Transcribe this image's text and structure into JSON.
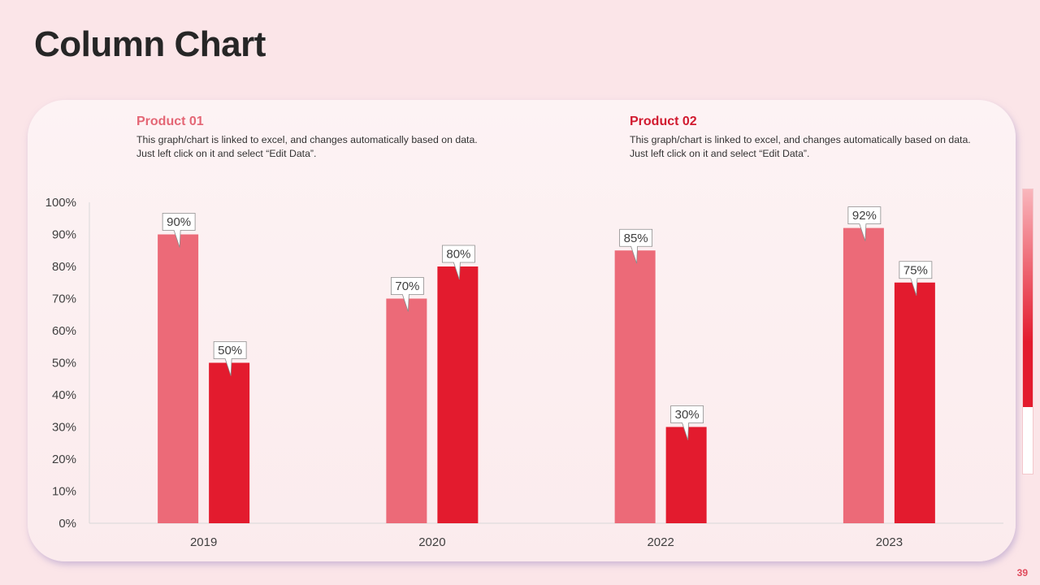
{
  "slide": {
    "title": "Column Chart",
    "page_number": "39"
  },
  "colors": {
    "product_01": "#ec6a78",
    "product_02": "#e31b2e",
    "background": "#fbe5e8",
    "accent": "#e04a5b"
  },
  "legend": [
    {
      "title": "Product 01",
      "description": "This graph/chart is linked to excel, and changes automatically based on data. Just left click on it and select “Edit Data”."
    },
    {
      "title": "Product 02",
      "description": "This graph/chart is linked to excel, and changes automatically based on data. Just left click on it and select “Edit Data”."
    }
  ],
  "chart_data": {
    "type": "bar",
    "title": "Column Chart",
    "xlabel": "",
    "ylabel": "",
    "categories": [
      "2019",
      "2020",
      "2022",
      "2023"
    ],
    "series": [
      {
        "name": "Product 01",
        "values": [
          90,
          70,
          85,
          92
        ]
      },
      {
        "name": "Product 02",
        "values": [
          50,
          80,
          30,
          75
        ]
      }
    ],
    "value_format": "percent",
    "ylim": [
      0,
      100
    ],
    "yticks": [
      0,
      10,
      20,
      30,
      40,
      50,
      60,
      70,
      80,
      90,
      100
    ],
    "ytick_labels": [
      "0%",
      "10%",
      "20%",
      "30%",
      "40%",
      "50%",
      "60%",
      "70%",
      "80%",
      "90%",
      "100%"
    ],
    "data_labels": [
      [
        "90%",
        "70%",
        "85%",
        "92%"
      ],
      [
        "50%",
        "80%",
        "30%",
        "75%"
      ]
    ],
    "grid": false,
    "legend_position": "top"
  }
}
